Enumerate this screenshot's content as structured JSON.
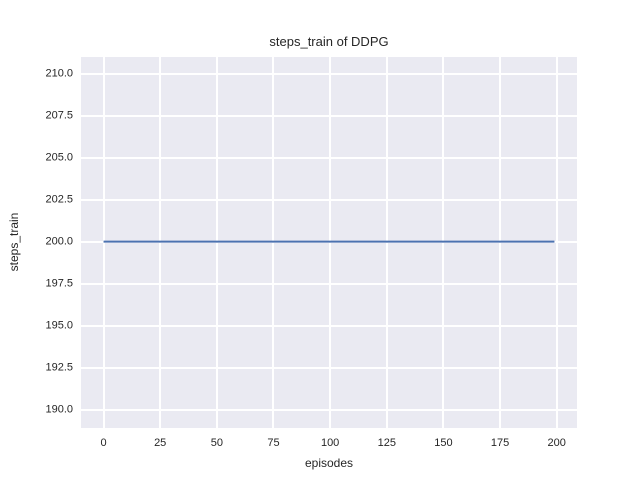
{
  "figure": {
    "background_color": "#ffffff"
  },
  "chart_data": {
    "type": "line",
    "title": "steps_train of DDPG",
    "xlabel": "episodes",
    "ylabel": "steps_train",
    "plot_background_color": "#EAEAF2",
    "gridline_color": "#ffffff",
    "text_color": "#262626",
    "grid": true,
    "legend": "none",
    "xlim": [
      -9.95,
      208.95
    ],
    "ylim": [
      188.9,
      211.0
    ],
    "xticks": [
      0,
      25,
      50,
      75,
      100,
      125,
      150,
      175,
      200
    ],
    "xtick_labels": [
      "0",
      "25",
      "50",
      "75",
      "100",
      "125",
      "150",
      "175",
      "200"
    ],
    "yticks": [
      190.0,
      192.5,
      195.0,
      197.5,
      200.0,
      202.5,
      205.0,
      207.5,
      210.0
    ],
    "ytick_labels": [
      "190.0",
      "192.5",
      "195.0",
      "197.5",
      "200.0",
      "202.5",
      "205.0",
      "207.5",
      "210.0"
    ],
    "series": [
      {
        "name": "steps_train",
        "color": "#4C72B0",
        "line_width": 2,
        "x": [
          0,
          199
        ],
        "y": [
          200,
          200
        ],
        "description": "constant value 200 for every episode from 0 to 199"
      }
    ]
  }
}
